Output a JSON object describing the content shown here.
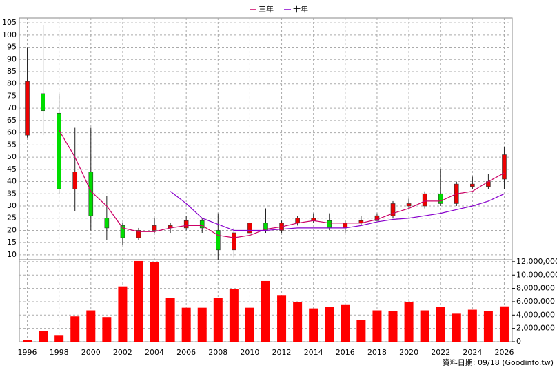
{
  "chart_data": [
    {
      "type": "candlestick",
      "x": [
        1996,
        1997,
        1998,
        1999,
        2000,
        2001,
        2002,
        2003,
        2004,
        2005,
        2006,
        2007,
        2008,
        2009,
        2010,
        2011,
        2012,
        2013,
        2014,
        2015,
        2016,
        2017,
        2018,
        2019,
        2020,
        2021,
        2022,
        2023,
        2024,
        2025,
        2026
      ],
      "open": [
        59,
        76,
        68,
        37,
        44,
        25,
        22,
        17,
        20,
        21,
        21,
        24,
        20,
        12,
        19,
        23,
        20,
        23,
        24,
        24,
        21,
        23,
        24,
        26,
        30,
        30,
        35,
        31,
        38,
        38,
        41
      ],
      "high": [
        95,
        104,
        76,
        62,
        62,
        34,
        23,
        21,
        25,
        23,
        26,
        25,
        27,
        21,
        23,
        29,
        24,
        26,
        27,
        27,
        24,
        26,
        27,
        32,
        33,
        36,
        45,
        40,
        42,
        43,
        54
      ],
      "low": [
        58,
        59,
        35,
        28,
        20,
        16,
        14,
        16,
        19,
        19,
        20,
        19,
        8,
        9,
        18,
        19,
        19,
        22,
        23,
        20,
        19,
        22,
        24,
        25,
        29,
        29,
        30,
        30,
        37,
        37,
        37
      ],
      "close": [
        81,
        69,
        37,
        44,
        26,
        21,
        17,
        20,
        22,
        22,
        24,
        21,
        12,
        19,
        23,
        20,
        23,
        25,
        25,
        21,
        23,
        24,
        26,
        31,
        31,
        35,
        31,
        39,
        39,
        40,
        51
      ],
      "colors": {
        "up": "#ee0000",
        "down": "#00dd00"
      },
      "series": [
        {
          "name": "三年",
          "color": "#cc0066",
          "values": [
            null,
            null,
            61,
            50,
            36,
            30,
            21,
            19.5,
            19.5,
            21,
            22,
            22,
            18,
            17,
            18,
            20.5,
            21.5,
            23,
            24,
            23,
            23,
            23,
            24.5,
            27,
            29,
            32,
            32,
            35,
            36,
            40,
            43.5
          ]
        },
        {
          "name": "十年",
          "color": "#8800cc",
          "values": [
            null,
            null,
            null,
            null,
            null,
            null,
            null,
            null,
            null,
            36,
            31,
            25,
            22.5,
            20,
            20,
            20,
            20.5,
            21,
            21,
            21,
            21,
            22,
            23.5,
            24.5,
            25,
            26,
            27,
            28.5,
            30,
            32,
            35
          ]
        }
      ],
      "xlim": [
        1995.5,
        2026.5
      ],
      "xticks": [
        1996,
        1998,
        2000,
        2002,
        2004,
        2006,
        2008,
        2010,
        2012,
        2014,
        2016,
        2018,
        2020,
        2022,
        2024,
        2026
      ],
      "ylim": [
        8,
        107
      ],
      "yticks": [
        10,
        15,
        20,
        25,
        30,
        35,
        40,
        45,
        50,
        55,
        60,
        65,
        70,
        75,
        80,
        85,
        90,
        95,
        100,
        105
      ],
      "grid": true
    },
    {
      "type": "bar",
      "x": [
        1996,
        1997,
        1998,
        1999,
        2000,
        2001,
        2002,
        2003,
        2004,
        2005,
        2006,
        2007,
        2008,
        2009,
        2010,
        2011,
        2012,
        2013,
        2014,
        2015,
        2016,
        2017,
        2018,
        2019,
        2020,
        2021,
        2022,
        2023,
        2024,
        2025,
        2026
      ],
      "values": [
        300000,
        1600000,
        900000,
        3800000,
        4700000,
        3700000,
        8300000,
        12100000,
        11900000,
        6600000,
        5100000,
        5100000,
        6600000,
        7900000,
        5100000,
        9100000,
        7000000,
        5900000,
        5000000,
        5200000,
        5500000,
        3300000,
        4700000,
        4600000,
        5900000,
        4700000,
        5200000,
        4200000,
        4800000,
        4600000,
        5300000
      ],
      "color": "#ff0000",
      "ylim": [
        0,
        12300000
      ],
      "yticks": [
        0,
        {
          "value": 2000000,
          "label": "2,000,000"
        },
        {
          "value": 4000000,
          "label": "4,000,000"
        },
        {
          "value": 6000000,
          "label": "6,000,000"
        },
        {
          "value": 8000000,
          "label": "8,000,000"
        },
        {
          "value": 10000000,
          "label": "10,000,000"
        },
        {
          "value": 12000000,
          "label": "12,000,000"
        }
      ],
      "note": "資料日期: 09/18  (Goodinfo.tw)",
      "grid": true
    }
  ]
}
